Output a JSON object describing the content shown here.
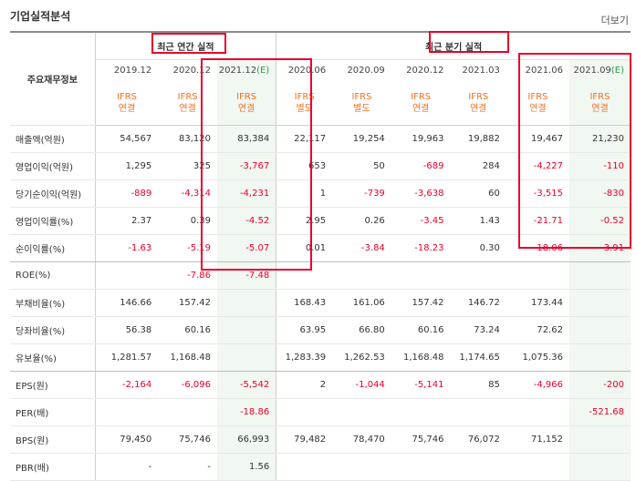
{
  "title": "기업실적분석",
  "more": "더보기",
  "row_header": "주요재무정보",
  "groups": {
    "annual": "최근 연간 실적",
    "quarter": "최근 분기 실적"
  },
  "periods": [
    {
      "label": "2019.12",
      "est": ""
    },
    {
      "label": "2020.12",
      "est": ""
    },
    {
      "label": "2021.12",
      "est": "(E)"
    },
    {
      "label": "2020.06",
      "est": ""
    },
    {
      "label": "2020.09",
      "est": ""
    },
    {
      "label": "2020.12",
      "est": ""
    },
    {
      "label": "2021.03",
      "est": ""
    },
    {
      "label": "2021.06",
      "est": ""
    },
    {
      "label": "2021.09",
      "est": "(E)"
    }
  ],
  "ifrs": [
    [
      "IFRS",
      "연결"
    ],
    [
      "IFRS",
      "연결"
    ],
    [
      "IFRS",
      "연결"
    ],
    [
      "IFRS",
      "별도"
    ],
    [
      "IFRS",
      "별도"
    ],
    [
      "IFRS",
      "연결"
    ],
    [
      "IFRS",
      "연결"
    ],
    [
      "IFRS",
      "연결"
    ],
    [
      "IFRS",
      "연결"
    ]
  ],
  "rows": [
    {
      "label": "매출액(억원)",
      "values": [
        "54,567",
        "83,120",
        "83,384",
        "22,117",
        "19,254",
        "19,963",
        "19,882",
        "19,467",
        "21,230"
      ]
    },
    {
      "label": "영업이익(억원)",
      "values": [
        "1,295",
        "325",
        "-3,767",
        "653",
        "50",
        "-689",
        "284",
        "-4,227",
        "-110"
      ]
    },
    {
      "label": "당기순이익(억원)",
      "values": [
        "-889",
        "-4,314",
        "-4,231",
        "1",
        "-739",
        "-3,638",
        "60",
        "-3,515",
        "-830"
      ]
    },
    {
      "label": "영업이익률(%)",
      "values": [
        "2.37",
        "0.39",
        "-4.52",
        "2.95",
        "0.26",
        "-3.45",
        "1.43",
        "-21.71",
        "-0.52"
      ]
    },
    {
      "label": "순이익률(%)",
      "values": [
        "-1.63",
        "-5.19",
        "-5.07",
        "0.01",
        "-3.84",
        "-18.23",
        "0.30",
        "-18.06",
        "-3.91"
      ]
    },
    {
      "label": "ROE(%)",
      "values": [
        "",
        "-7.86",
        "-7.48",
        "",
        "",
        "",
        "",
        "",
        ""
      ]
    },
    {
      "label": "부채비율(%)",
      "values": [
        "146.66",
        "157.42",
        "",
        "168.43",
        "161.06",
        "157.42",
        "146.72",
        "173.44",
        ""
      ]
    },
    {
      "label": "당좌비율(%)",
      "values": [
        "56.38",
        "60.16",
        "",
        "63.95",
        "66.80",
        "60.16",
        "73.24",
        "72.62",
        ""
      ]
    },
    {
      "label": "유보율(%)",
      "values": [
        "1,281.57",
        "1,168.48",
        "",
        "1,283.39",
        "1,262.53",
        "1,168.48",
        "1,174.65",
        "1,075.36",
        ""
      ]
    },
    {
      "label": "EPS(원)",
      "values": [
        "-2,164",
        "-6,096",
        "-5,542",
        "2",
        "-1,044",
        "-5,141",
        "85",
        "-4,966",
        "-200"
      ]
    },
    {
      "label": "PER(배)",
      "values": [
        "",
        "",
        "-18.86",
        "",
        "",
        "",
        "",
        "",
        "-521.68"
      ]
    },
    {
      "label": "BPS(원)",
      "values": [
        "79,450",
        "75,746",
        "66,993",
        "79,482",
        "78,470",
        "75,746",
        "76,072",
        "71,152",
        ""
      ]
    },
    {
      "label": "PBR(배)",
      "values": [
        "-",
        "-",
        "1.56",
        "",
        "",
        "",
        "",
        "",
        ""
      ]
    }
  ]
}
